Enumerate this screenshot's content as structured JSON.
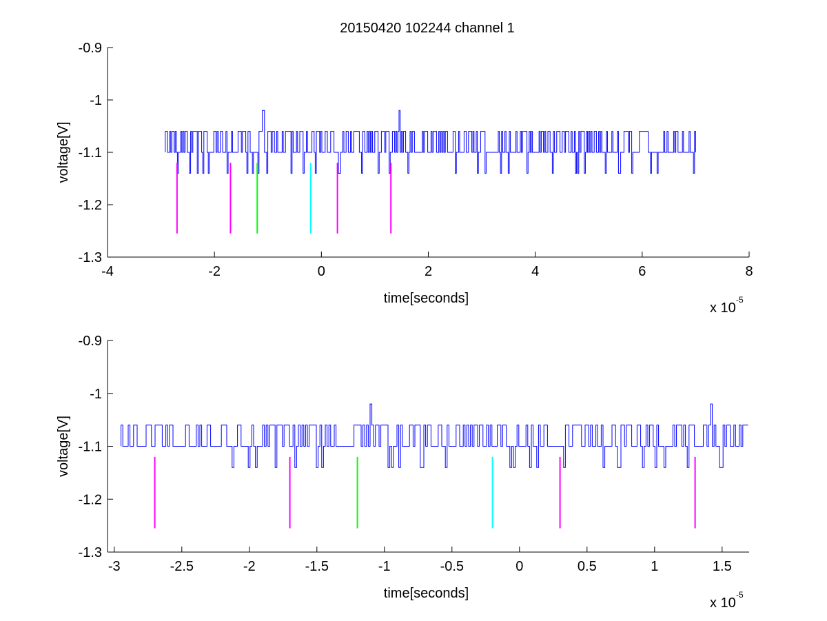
{
  "figure_title": "20150420 102244 channel 1",
  "chart_data": [
    {
      "type": "line",
      "title": "20150420 102244 channel 1",
      "xlabel": "time[seconds]",
      "ylabel": "voltage[V]",
      "x_exponent_label": "x 10",
      "x_exponent": "-5",
      "xlim": [
        -4,
        8
      ],
      "ylim": [
        -1.3,
        -0.9
      ],
      "xticks": [
        -4,
        -2,
        0,
        2,
        4,
        6,
        8
      ],
      "xtick_labels": [
        "-4",
        "-2",
        "0",
        "2",
        "4",
        "6",
        "8"
      ],
      "yticks": [
        -1.3,
        -1.2,
        -1.1,
        -1.0,
        -0.9
      ],
      "ytick_labels": [
        "-1.3",
        "-1.2",
        "-1.1",
        "-1",
        "-0.9"
      ],
      "grid": false,
      "signal": {
        "color": "#0000ff",
        "x_start": -2.92,
        "x_end": 7.0,
        "base_level": -1.1,
        "noise_high_level": -1.06,
        "noise_low_level": -1.14,
        "spikes": [
          {
            "x": -1.1,
            "y": -1.02
          },
          {
            "x": 1.45,
            "y": -1.02
          }
        ]
      },
      "markers": [
        {
          "x": -2.7,
          "y_top": -1.12,
          "y_bottom": -1.255,
          "color": "#ff00ff"
        },
        {
          "x": -1.7,
          "y_top": -1.12,
          "y_bottom": -1.255,
          "color": "#ff00ff"
        },
        {
          "x": -1.2,
          "y_top": -1.12,
          "y_bottom": -1.255,
          "color": "#00ff00"
        },
        {
          "x": -0.2,
          "y_top": -1.12,
          "y_bottom": -1.255,
          "color": "#00ffff"
        },
        {
          "x": 0.3,
          "y_top": -1.12,
          "y_bottom": -1.255,
          "color": "#ff00ff"
        },
        {
          "x": 1.3,
          "y_top": -1.12,
          "y_bottom": -1.255,
          "color": "#ff00ff"
        }
      ]
    },
    {
      "type": "line",
      "title": "",
      "xlabel": "time[seconds]",
      "ylabel": "voltage[V]",
      "x_exponent_label": "x 10",
      "x_exponent": "-5",
      "xlim": [
        -3.05,
        1.7
      ],
      "ylim": [
        -1.3,
        -0.9
      ],
      "xticks": [
        -3,
        -2.5,
        -2,
        -1.5,
        -1,
        -0.5,
        0,
        0.5,
        1,
        1.5
      ],
      "xtick_labels": [
        "-3",
        "-2.5",
        "-2",
        "-1.5",
        "-1",
        "-0.5",
        "0",
        "0.5",
        "1",
        "1.5"
      ],
      "yticks": [
        -1.3,
        -1.2,
        -1.1,
        -1.0,
        -0.9
      ],
      "ytick_labels": [
        "-1.3",
        "-1.2",
        "-1.1",
        "-1",
        "-0.9"
      ],
      "grid": false,
      "signal": {
        "color": "#0000ff",
        "x_start": -2.95,
        "x_end": 1.7,
        "base_level": -1.1,
        "noise_high_level": -1.06,
        "noise_low_level": -1.14,
        "spikes": [
          {
            "x": -1.11,
            "y": -1.02
          },
          {
            "x": 1.42,
            "y": -1.02
          }
        ]
      },
      "markers": [
        {
          "x": -2.7,
          "y_top": -1.12,
          "y_bottom": -1.255,
          "color": "#ff00ff"
        },
        {
          "x": -1.7,
          "y_top": -1.12,
          "y_bottom": -1.255,
          "color": "#ff00ff"
        },
        {
          "x": -1.2,
          "y_top": -1.12,
          "y_bottom": -1.255,
          "color": "#00ff00"
        },
        {
          "x": -0.2,
          "y_top": -1.12,
          "y_bottom": -1.255,
          "color": "#00ffff"
        },
        {
          "x": 0.3,
          "y_top": -1.12,
          "y_bottom": -1.255,
          "color": "#ff00ff"
        },
        {
          "x": 1.3,
          "y_top": -1.12,
          "y_bottom": -1.255,
          "color": "#ff00ff"
        }
      ]
    }
  ]
}
